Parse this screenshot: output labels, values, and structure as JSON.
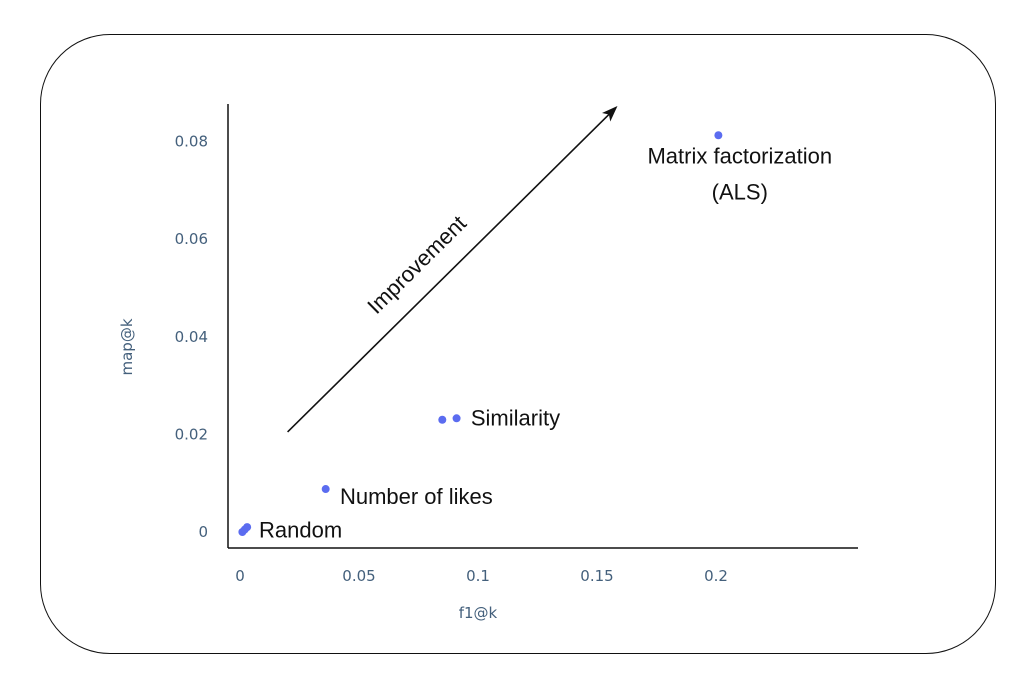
{
  "chart_data": {
    "type": "scatter",
    "xlabel": "f1@k",
    "ylabel": "map@k",
    "xlim": [
      -0.005,
      0.255
    ],
    "ylim": [
      -0.003,
      0.09
    ],
    "xticks": [
      {
        "value": 0,
        "label": "0"
      },
      {
        "value": 0.05,
        "label": "0.05"
      },
      {
        "value": 0.1,
        "label": "0.1"
      },
      {
        "value": 0.15,
        "label": "0.15"
      },
      {
        "value": 0.2,
        "label": "0.2"
      }
    ],
    "yticks": [
      {
        "value": 0,
        "label": "0"
      },
      {
        "value": 0.02,
        "label": "0.02"
      },
      {
        "value": 0.04,
        "label": "0.04"
      },
      {
        "value": 0.06,
        "label": "0.06"
      },
      {
        "value": 0.08,
        "label": "0.08"
      }
    ],
    "point_color": "#5b6cf0",
    "points": [
      {
        "x": 0.001,
        "y": 0.0
      },
      {
        "x": 0.002,
        "y": 0.0005
      },
      {
        "x": 0.003,
        "y": 0.001
      },
      {
        "x": 0.036,
        "y": 0.0088
      },
      {
        "x": 0.085,
        "y": 0.023
      },
      {
        "x": 0.091,
        "y": 0.0233
      },
      {
        "x": 0.201,
        "y": 0.0813
      }
    ],
    "annotations": [
      {
        "text": "Random",
        "x": 0.008,
        "y": 0.0003
      },
      {
        "text": "Number of likes",
        "x": 0.042,
        "y": 0.0072
      },
      {
        "text": "Similarity",
        "x": 0.097,
        "y": 0.0233
      },
      {
        "lines": [
          "Matrix factorization",
          "(ALS)"
        ],
        "x": 0.21,
        "y": 0.0755
      }
    ],
    "arrow": {
      "label": "Improvement",
      "from": {
        "x": 0.02,
        "y": 0.0205
      },
      "to": {
        "x": 0.158,
        "y": 0.087
      }
    },
    "grid": false,
    "legend": "none"
  }
}
